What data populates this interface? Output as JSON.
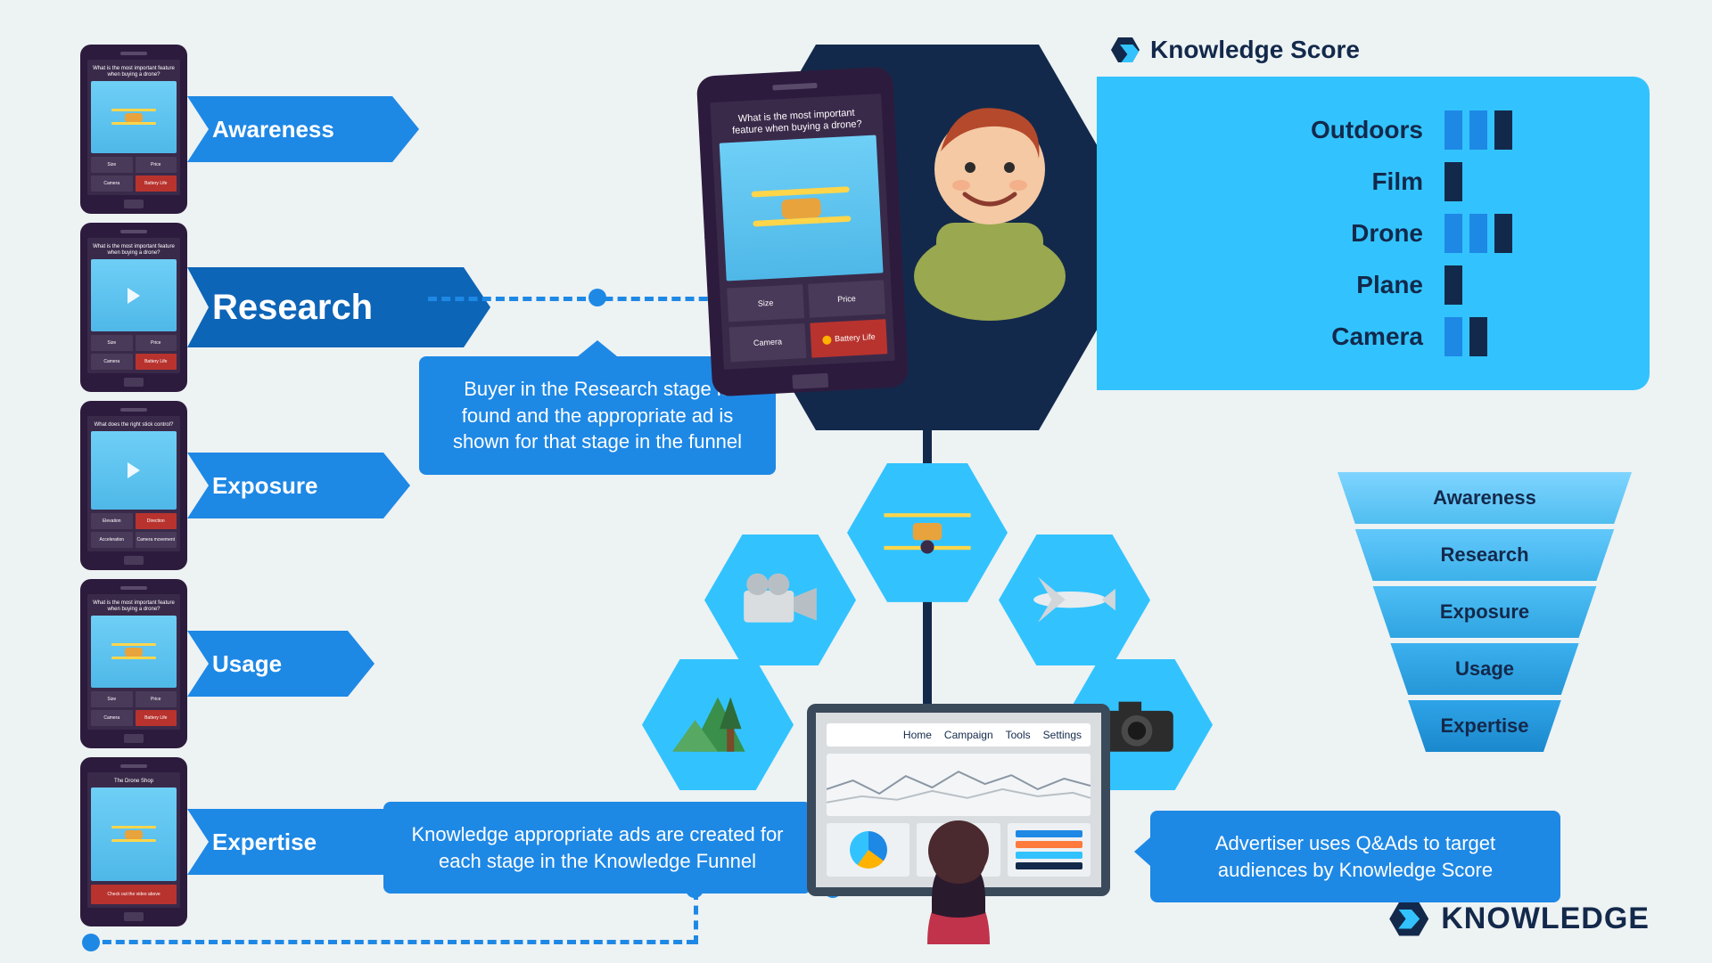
{
  "colors": {
    "bg": "#edf2f3",
    "navy": "#13294b",
    "blue": "#1e88e5",
    "cyan": "#32c3ff",
    "phone": "#2d1b3d",
    "accent_red": "#b8332e",
    "drone_body": "#e8a33d",
    "drone_prop": "#ffd54a"
  },
  "stages": [
    {
      "key": "awareness",
      "label": "Awareness",
      "active": false,
      "tag_bg": "#1e88e5",
      "tag_width": 260,
      "tag_fs": 26,
      "phone": {
        "question": "What is the most important feature when buying a drone?",
        "img": "drone",
        "opts": [
          "Size",
          "Price",
          "Camera",
          "Battery Life"
        ],
        "sel": 3
      }
    },
    {
      "key": "research",
      "label": "Research",
      "active": true,
      "tag_bg": "#0d65b7",
      "tag_width": 340,
      "tag_fs": 40,
      "phone": {
        "question": "What is the most important feature when buying a drone?",
        "img": "drone_play",
        "opts": [
          "Size",
          "Price",
          "Camera",
          "Battery Life"
        ],
        "sel": 3
      }
    },
    {
      "key": "exposure",
      "label": "Exposure",
      "active": false,
      "tag_bg": "#1e88e5",
      "tag_width": 250,
      "tag_fs": 26,
      "phone": {
        "question": "What does the right stick control?",
        "img": "controller_play",
        "opts": [
          "Elevation",
          "Direction",
          "Acceleration",
          "Camera movement"
        ],
        "sel": 1
      }
    },
    {
      "key": "usage",
      "label": "Usage",
      "active": false,
      "tag_bg": "#1e88e5",
      "tag_width": 210,
      "tag_fs": 26,
      "phone": {
        "question": "What is the most important feature when buying a drone?",
        "img": "drone",
        "opts": [
          "Size",
          "Price",
          "Camera",
          "Battery Life"
        ],
        "sel": 3
      }
    },
    {
      "key": "expertise",
      "label": "Expertise",
      "active": false,
      "tag_bg": "#1e88e5",
      "tag_width": 250,
      "tag_fs": 26,
      "phone": {
        "question": "The Drone Shop",
        "img": "expert",
        "cta": "Check out the video above",
        "opts": [],
        "sel": -1
      }
    }
  ],
  "big_phone": {
    "question": "What is the most important feature when buying a drone?",
    "opts": [
      "Size",
      "Price",
      "Camera",
      "Battery Life"
    ],
    "sel": 3
  },
  "callouts": {
    "research": "Buyer in the Research stage is found and the appropriate ad is shown for that stage in the funnel",
    "ads": "Knowledge appropriate ads are created for each stage in the Knowledge Funnel",
    "advertiser": "Advertiser uses Q&Ads to target audiences by Knowledge Score"
  },
  "knowledge_score": {
    "title": "Knowledge Score",
    "rows": [
      {
        "label": "Outdoors",
        "bars": [
          "blue",
          "blue",
          "dark"
        ]
      },
      {
        "label": "Film",
        "bars": [
          "dark"
        ]
      },
      {
        "label": "Drone",
        "bars": [
          "blue",
          "blue",
          "dark"
        ]
      },
      {
        "label": "Plane",
        "bars": [
          "dark"
        ]
      },
      {
        "label": "Camera",
        "bars": [
          "blue",
          "dark"
        ]
      }
    ]
  },
  "hex_icons": [
    "outdoors",
    "film",
    "drone",
    "plane",
    "camera"
  ],
  "funnel_steps": [
    "Awareness",
    "Research",
    "Exposure",
    "Usage",
    "Expertise"
  ],
  "funnel_gradient": [
    [
      "#7fd4ff",
      "#4fbef0"
    ],
    [
      "#62c8fb",
      "#3cb1ea"
    ],
    [
      "#4ebef5",
      "#2fa4e1"
    ],
    [
      "#3cb1ef",
      "#2596d7"
    ],
    [
      "#2fa4e8",
      "#1b88cd"
    ]
  ],
  "dashboard": {
    "tabs": [
      "Home",
      "Campaign",
      "Tools",
      "Settings"
    ]
  },
  "brand": "KNOWLEDGE"
}
